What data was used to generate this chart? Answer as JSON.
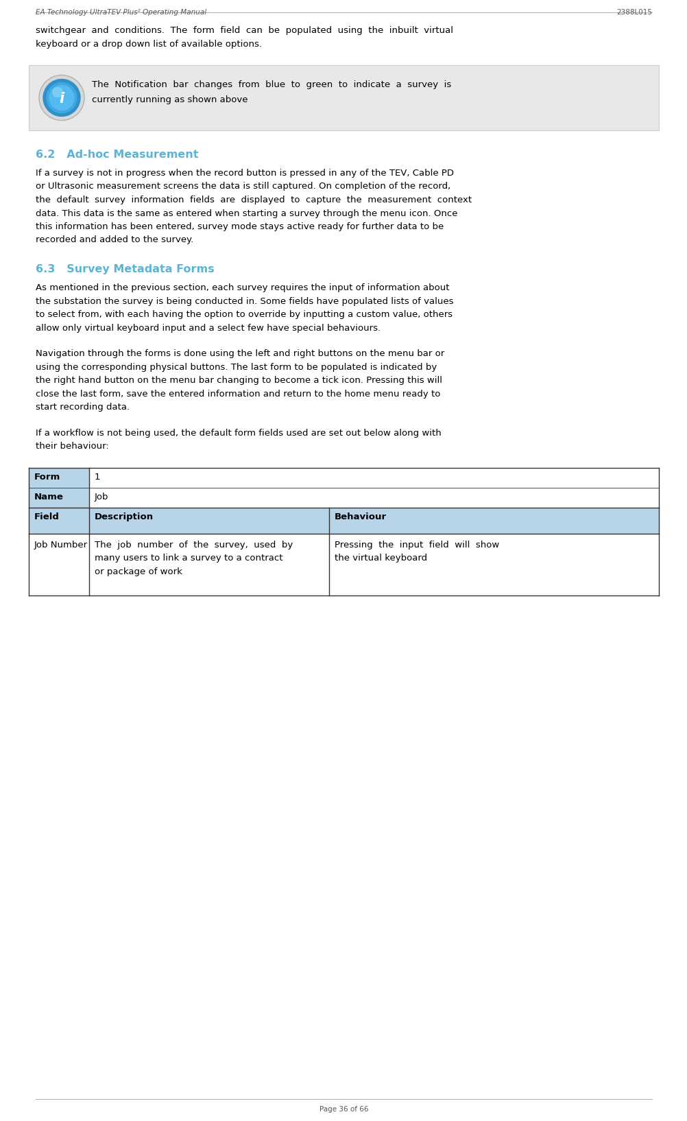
{
  "page_width": 10.03,
  "page_height": 16.34,
  "dpi": 100,
  "bg_color": "#ffffff",
  "header_left": "EA Technology UltraTEV Plus² Operating Manual",
  "header_right": "2388L015",
  "footer_text": "Page 36 of 66",
  "header_font_size": 7.5,
  "body_font_size": 9.5,
  "section_font_size": 11.5,
  "section_color": "#5ab4d6",
  "body_color": "#000000",
  "header_color": "#555555",
  "info_box_bg": "#e8e8e8",
  "info_box_text_line1": "The  Notification  bar  changes  from  blue  to  green  to  indicate  a  survey  is",
  "info_box_text_line2": "currently running as shown above",
  "section_62_title": "6.2   Ad-hoc Measurement",
  "section_62_para": [
    "If a survey is not in progress when the record button is pressed in any of the TEV, Cable PD",
    "or Ultrasonic measurement screens the data is still captured. On completion of the record,",
    "the  default  survey  information  fields  are  displayed  to  capture  the  measurement  context",
    "data. This data is the same as entered when starting a survey through the menu icon. Once",
    "this information has been entered, survey mode stays active ready for further data to be",
    "recorded and added to the survey."
  ],
  "section_63_title": "6.3   Survey Metadata Forms",
  "section_63_para1": [
    "As mentioned in the previous section, each survey requires the input of information about",
    "the substation the survey is being conducted in. Some fields have populated lists of values",
    "to select from, with each having the option to override by inputting a custom value, others",
    "allow only virtual keyboard input and a select few have special behaviours."
  ],
  "section_63_para2": [
    "Navigation through the forms is done using the left and right buttons on the menu bar or",
    "using the corresponding physical buttons. The last form to be populated is indicated by",
    "the right hand button on the menu bar changing to become a tick icon. Pressing this will",
    "close the last form, save the entered information and return to the home menu ready to",
    "start recording data."
  ],
  "section_63_para3": [
    "If a workflow is not being used, the default form fields used are set out below along with",
    "their behaviour:"
  ],
  "intro_lines": [
    "switchgear  and  conditions.  The  form  field  can  be  populated  using  the  inbuilt  virtual",
    "keyboard or a drop down list of available options."
  ],
  "table_form_label": "Form",
  "table_form_value": "1",
  "table_name_label": "Name",
  "table_name_value": "Job",
  "table_col1": "Field",
  "table_col2": "Description",
  "table_col3": "Behaviour",
  "table_row1_col1": "Job Number",
  "table_row1_col2": [
    "The  job  number  of  the  survey,  used  by",
    "many users to link a survey to a contract",
    "or package of work"
  ],
  "table_row1_col3": [
    "Pressing  the  input  field  will  show",
    "the virtual keyboard"
  ],
  "table_col1_left_bg": "#b8d4e8",
  "table_header_bg": "#b8d4e8",
  "table_form_name_bg": "#ffffff",
  "table_data_bg": "#ffffff",
  "table_border_color": "#333333"
}
